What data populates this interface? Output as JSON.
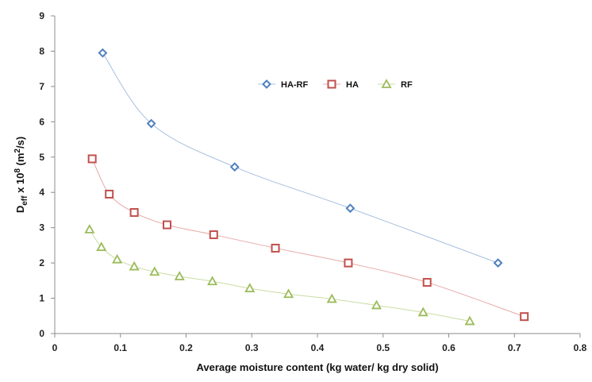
{
  "chart_data": {
    "type": "scatter",
    "title": "",
    "xlabel": "Average moisture content (kg water/ kg dry solid)",
    "ylabel": {
      "base": "D",
      "subscript": "eff",
      "mid": " x 10",
      "superscript": "8",
      "unit_pre": " (m",
      "unit_sup": "2",
      "unit_post": "/s)"
    },
    "xlim": [
      0,
      0.8
    ],
    "ylim": [
      0,
      9
    ],
    "x_ticks": [
      "0",
      "0.1",
      "0.2",
      "0.3",
      "0.4",
      "0.5",
      "0.6",
      "0.7",
      "0.8"
    ],
    "y_ticks": [
      "0",
      "1",
      "2",
      "3",
      "4",
      "5",
      "6",
      "7",
      "8",
      "9"
    ],
    "grid": false,
    "legend_position": "top-center",
    "series": [
      {
        "name": "HA-RF",
        "marker": "diamond",
        "color": "#4f81bd",
        "line_color": "#a6c0e0",
        "points": [
          [
            0.073,
            7.95
          ],
          [
            0.147,
            5.95
          ],
          [
            0.274,
            4.72
          ],
          [
            0.45,
            3.55
          ],
          [
            0.675,
            2.0
          ]
        ]
      },
      {
        "name": "HA",
        "marker": "square",
        "color": "#c0504d",
        "line_color": "#e6a9a8",
        "points": [
          [
            0.057,
            4.95
          ],
          [
            0.083,
            3.95
          ],
          [
            0.121,
            3.43
          ],
          [
            0.171,
            3.08
          ],
          [
            0.242,
            2.8
          ],
          [
            0.336,
            2.42
          ],
          [
            0.447,
            2.0
          ],
          [
            0.567,
            1.45
          ],
          [
            0.715,
            0.48
          ]
        ]
      },
      {
        "name": "RF",
        "marker": "triangle",
        "color": "#9bbb59",
        "line_color": "#c9dca3",
        "points": [
          [
            0.053,
            2.95
          ],
          [
            0.071,
            2.45
          ],
          [
            0.095,
            2.1
          ],
          [
            0.121,
            1.9
          ],
          [
            0.152,
            1.75
          ],
          [
            0.19,
            1.62
          ],
          [
            0.24,
            1.48
          ],
          [
            0.297,
            1.28
          ],
          [
            0.356,
            1.12
          ],
          [
            0.422,
            0.98
          ],
          [
            0.49,
            0.8
          ],
          [
            0.561,
            0.6
          ],
          [
            0.632,
            0.35
          ]
        ]
      }
    ]
  }
}
